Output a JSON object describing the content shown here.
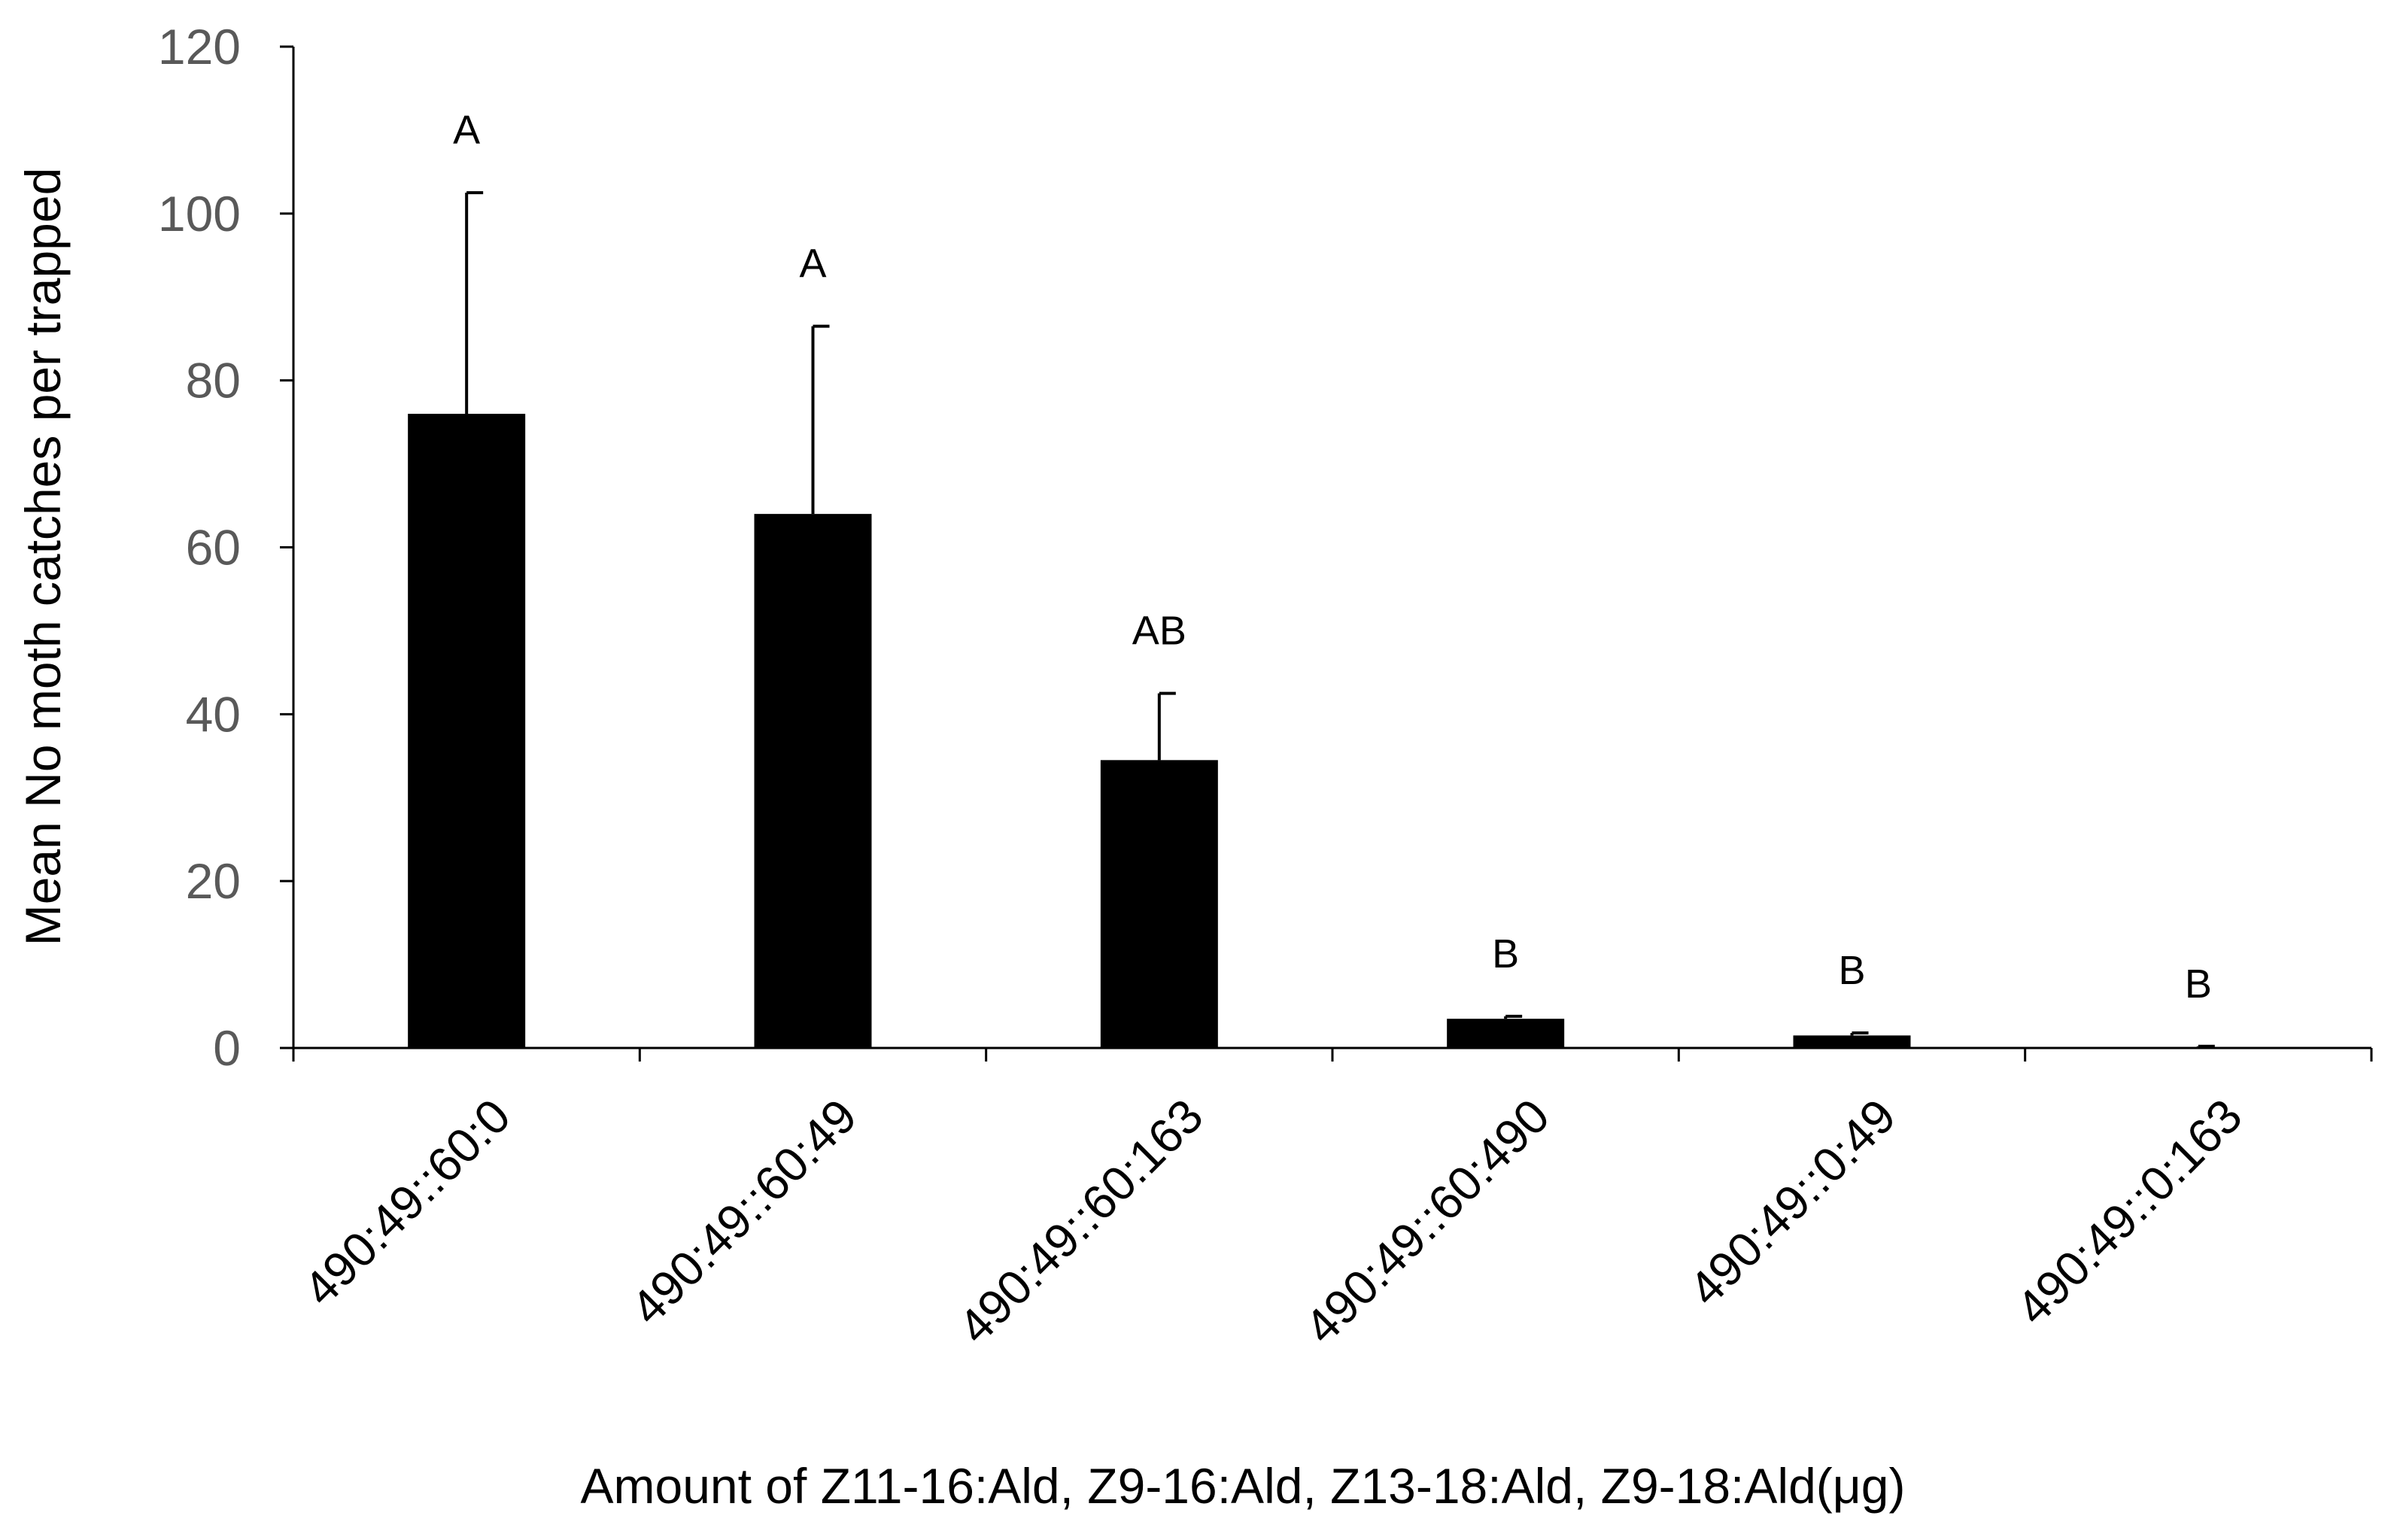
{
  "chart_data": {
    "type": "bar",
    "title": "",
    "xlabel": "Amount of Z11-16:Ald, Z9-16:Ald, Z13-18:Ald, Z9-18:Ald(μg)",
    "ylabel": "Mean No moth catches per  trapped",
    "ylim": [
      0,
      120
    ],
    "yticks": [
      "0",
      "20",
      "40",
      "60",
      "80",
      "100",
      "120"
    ],
    "grid": false,
    "legend": "none",
    "categories": [
      "490:49::60:0",
      "490:49::60:49",
      "490:49::60:163",
      "490:49::60:490",
      "490:49::0:49",
      "490:49::0:163"
    ],
    "values": [
      76,
      64,
      34.5,
      3.5,
      1.5,
      0.1
    ],
    "error": [
      26.5,
      22.5,
      8,
      0.3,
      0.3,
      0.1
    ],
    "annotations": [
      "A",
      "A",
      "AB",
      "B",
      "B",
      "B"
    ],
    "colors": {
      "bar": "#000000",
      "axis": "#000000",
      "tick_label": "#595959"
    }
  }
}
